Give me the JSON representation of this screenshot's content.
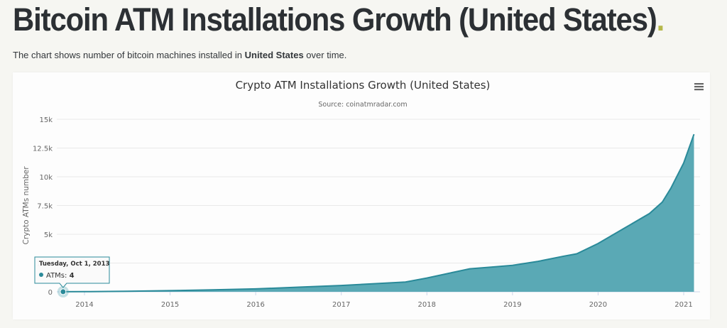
{
  "page": {
    "title": "Bitcoin ATM Installations Growth (United States)",
    "title_dot": ".",
    "intro_before": "The chart shows number of bitcoin machines installed in ",
    "intro_bold": "United States",
    "intro_after": " over time."
  },
  "menu": {
    "icon": "hamburger-menu-icon"
  },
  "colors": {
    "area_fill": "#5aa9b5",
    "line": "#2a8a99",
    "accent_dot": "#b5b84a"
  },
  "tooltip": {
    "date": "Tuesday, Oct 1, 2013",
    "series_label": "ATMs",
    "value": "4"
  },
  "chart_data": {
    "type": "area",
    "title": "Crypto ATM Installations Growth (United States)",
    "subtitle": "Source: coinatmradar.com",
    "xlabel": "",
    "ylabel": "Crypto ATMs number",
    "x_ticks": [
      "2014",
      "2015",
      "2016",
      "2017",
      "2018",
      "2019",
      "2020",
      "2021"
    ],
    "y_ticks": [
      "0",
      "2.5k",
      "5k",
      "7.5k",
      "10k",
      "12.5k",
      "15k"
    ],
    "y_tick_values": [
      0,
      2500,
      5000,
      7500,
      10000,
      12500,
      15000
    ],
    "ylim": [
      0,
      15000
    ],
    "xlim": [
      2013.6,
      2021.4
    ],
    "grid": true,
    "legend": "none",
    "series": [
      {
        "name": "ATMs",
        "x": [
          2013.75,
          2014.0,
          2014.5,
          2015.0,
          2015.5,
          2016.0,
          2016.5,
          2017.0,
          2017.5,
          2017.75,
          2018.0,
          2018.25,
          2018.5,
          2018.75,
          2019.0,
          2019.3,
          2019.6,
          2019.75,
          2020.0,
          2020.3,
          2020.6,
          2020.75,
          2020.85,
          2021.0,
          2021.12
        ],
        "values": [
          4,
          15,
          50,
          100,
          170,
          250,
          400,
          550,
          750,
          850,
          1200,
          1600,
          2000,
          2150,
          2300,
          2650,
          3100,
          3300,
          4200,
          5500,
          6800,
          7800,
          9000,
          11200,
          13700
        ]
      }
    ]
  }
}
